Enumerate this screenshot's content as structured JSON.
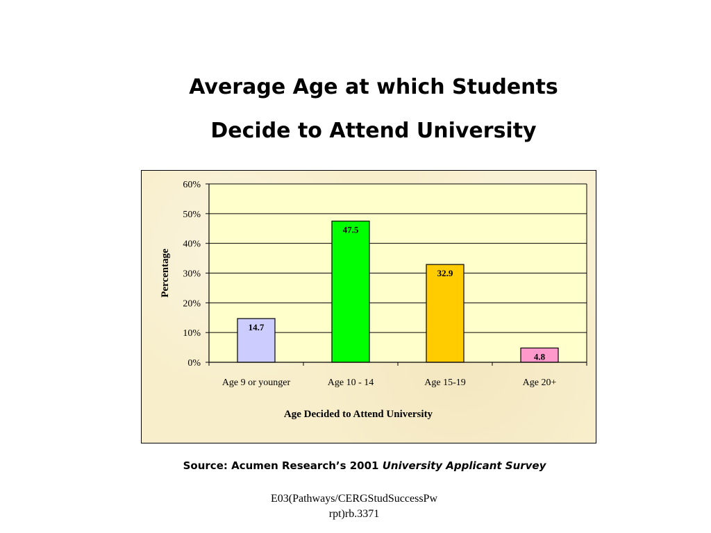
{
  "slide": {
    "title_line1": "Average Age at which Students",
    "title_line2": "Decide to Attend University",
    "source_prefix": "Source: Acumen Research’s 2001 ",
    "source_italic": "University Applicant Survey",
    "footer_line1": "E03(Pathways/CERGStudSuccessPw",
    "footer_line2": "rpt)rb.3371"
  },
  "chart_data": {
    "type": "bar",
    "title": "",
    "xlabel": "Age Decided to Attend University",
    "ylabel": "Percentage",
    "categories": [
      "Age 9 or younger",
      "Age 10 - 14",
      "Age 15-19",
      "Age 20+"
    ],
    "values": [
      14.7,
      47.5,
      32.9,
      4.8
    ],
    "data_labels": [
      "14.7",
      "47.5",
      "32.9",
      "4.8"
    ],
    "bar_colors": [
      "#ccccff",
      "#00ff00",
      "#ffcc00",
      "#ff99cc"
    ],
    "plot_background": "#ffffcc",
    "frame_background": "#f8eecb",
    "ylim": [
      0,
      60
    ],
    "yticks": [
      0,
      10,
      20,
      30,
      40,
      50,
      60
    ],
    "ytick_labels": [
      "0%",
      "10%",
      "20%",
      "30%",
      "40%",
      "50%",
      "60%"
    ],
    "grid": true,
    "legend": "none"
  }
}
